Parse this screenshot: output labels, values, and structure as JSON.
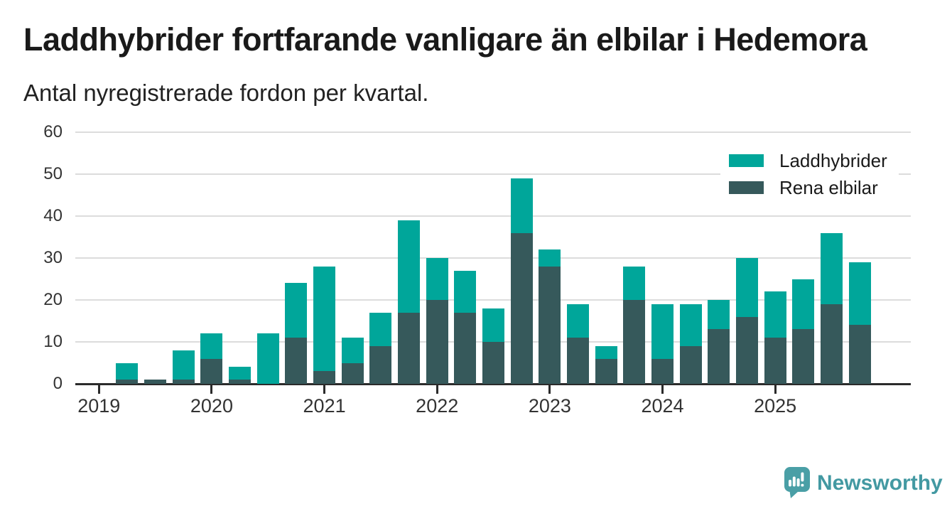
{
  "header": {
    "title": "Laddhybrider fortfarande vanligare än elbilar i Hedemora",
    "subtitle": "Antal nyregistrerade fordon per kvartal."
  },
  "legend": {
    "items": [
      {
        "label": "Laddhybrider",
        "color": "#00A69A"
      },
      {
        "label": "Rena elbilar",
        "color": "#36595B"
      }
    ]
  },
  "footer": {
    "brand": "Newsworthy",
    "brand_color": "#4399A2",
    "logo_icon_color": "#4A9FA6"
  },
  "chart_data": {
    "type": "bar",
    "stacked": true,
    "title": "Laddhybrider fortfarande vanligare än elbilar i Hedemora",
    "subtitle": "Antal nyregistrerade fordon per kvartal.",
    "xlabel": "",
    "ylabel": "",
    "ylim": [
      0,
      60
    ],
    "yticks": [
      0,
      10,
      20,
      30,
      40,
      50,
      60
    ],
    "grid": "horizontal",
    "legend_position": "top-right",
    "categories": [
      "2019 Q1",
      "2019 Q2",
      "2019 Q3",
      "2019 Q4",
      "2020 Q1",
      "2020 Q2",
      "2020 Q3",
      "2020 Q4",
      "2021 Q1",
      "2021 Q2",
      "2021 Q3",
      "2021 Q4",
      "2022 Q1",
      "2022 Q2",
      "2022 Q3",
      "2022 Q4",
      "2023 Q1",
      "2023 Q2",
      "2023 Q3",
      "2023 Q4",
      "2024 Q1",
      "2024 Q2",
      "2024 Q3",
      "2024 Q4",
      "2025 Q1",
      "2025 Q2",
      "2025 Q3",
      "2025 Q4"
    ],
    "series": [
      {
        "name": "Laddhybrider",
        "color": "#00A69A",
        "values": [
          0,
          4,
          0,
          7,
          6,
          3,
          12,
          13,
          25,
          6,
          8,
          22,
          10,
          10,
          8,
          13,
          4,
          8,
          3,
          8,
          13,
          10,
          7,
          14,
          11,
          12,
          17,
          15
        ]
      },
      {
        "name": "Rena elbilar",
        "color": "#36595B",
        "values": [
          0,
          1,
          1,
          1,
          6,
          1,
          0,
          11,
          3,
          5,
          9,
          17,
          20,
          17,
          10,
          36,
          28,
          11,
          6,
          20,
          6,
          9,
          13,
          16,
          11,
          13,
          19,
          14
        ]
      }
    ],
    "stack_order_bottom_to_top": [
      "Rena elbilar",
      "Laddhybrider"
    ],
    "totals": [
      0,
      5,
      1,
      8,
      12,
      4,
      12,
      24,
      28,
      11,
      17,
      39,
      30,
      27,
      18,
      49,
      32,
      19,
      9,
      28,
      19,
      19,
      20,
      30,
      22,
      25,
      36,
      29
    ],
    "year_ticks": [
      {
        "label": "2019",
        "quarter_index": 0
      },
      {
        "label": "2020",
        "quarter_index": 4
      },
      {
        "label": "2021",
        "quarter_index": 8
      },
      {
        "label": "2022",
        "quarter_index": 12
      },
      {
        "label": "2023",
        "quarter_index": 16
      },
      {
        "label": "2024",
        "quarter_index": 20
      },
      {
        "label": "2025",
        "quarter_index": 24
      }
    ]
  }
}
